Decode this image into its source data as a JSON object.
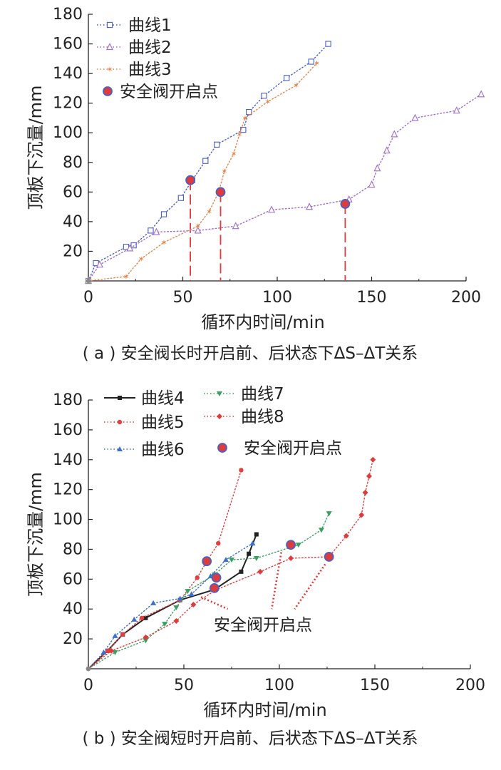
{
  "chart_data": [
    {
      "type": "line",
      "caption": "( a ) 安全阀长时开启前、后状态下ΔS–ΔT关系",
      "xlabel": "循环内时间/min",
      "ylabel": "顶板下沉量/mm",
      "xlim": [
        0,
        200
      ],
      "ylim": [
        0,
        180
      ],
      "xticks": [
        "0",
        "50",
        "100",
        "150",
        "200"
      ],
      "yticks": [
        "20",
        "40",
        "60",
        "80",
        "100",
        "120",
        "140",
        "160",
        "180"
      ],
      "legend_position": "top-left",
      "series": [
        {
          "name": "曲线1",
          "color": "#4a5fc8",
          "marker": "square-open",
          "x": [
            0,
            4,
            20,
            24,
            33,
            40,
            49,
            55,
            62,
            68,
            82,
            85,
            93,
            105,
            118,
            127
          ],
          "y": [
            0,
            12,
            23,
            24,
            34,
            45,
            56,
            68,
            81,
            92,
            102,
            114,
            125,
            137,
            148,
            160
          ]
        },
        {
          "name": "曲线2",
          "color": "#a06bd0",
          "marker": "triangle-open",
          "x": [
            0,
            6,
            22,
            36,
            58,
            78,
            97,
            117,
            138,
            150,
            153,
            158,
            162,
            173,
            195,
            208
          ],
          "y": [
            0,
            11,
            22,
            33,
            34,
            37,
            48,
            50,
            55,
            65,
            76,
            88,
            99,
            110,
            115,
            126
          ]
        },
        {
          "name": "曲线3",
          "color": "#e8844a",
          "marker": "star",
          "x": [
            0,
            20,
            28,
            40,
            58,
            64,
            69,
            72,
            77,
            80,
            83,
            95,
            110,
            121
          ],
          "y": [
            0,
            3,
            15,
            26,
            37,
            47,
            60,
            74,
            86,
            99,
            110,
            121,
            132,
            147
          ]
        },
        {
          "name": "安全阀开启点",
          "color": "#e03a3a",
          "marker": "filled-circle",
          "x": [
            54,
            70,
            136
          ],
          "y": [
            68,
            60,
            52
          ]
        }
      ]
    },
    {
      "type": "line",
      "caption": "( b ) 安全阀短时开启前、后状态下ΔS–ΔT关系",
      "xlabel": "循环内时间/min",
      "ylabel": "顶板下沉量/mm",
      "xlim": [
        0,
        200
      ],
      "ylim": [
        0,
        180
      ],
      "xticks": [
        "0",
        "50",
        "100",
        "150",
        "200"
      ],
      "yticks": [
        "20",
        "40",
        "60",
        "80",
        "100",
        "120",
        "140",
        "160",
        "180"
      ],
      "legend_position": "top-left",
      "annotation": "安全阀开启点",
      "series": [
        {
          "name": "曲线4",
          "color": "#222222",
          "marker": "square",
          "x": [
            0,
            10,
            18,
            30,
            48,
            66,
            80,
            84,
            88
          ],
          "y": [
            0,
            12,
            23,
            34,
            46,
            53,
            65,
            77,
            90
          ]
        },
        {
          "name": "曲线5",
          "color": "#e04040",
          "marker": "circle",
          "x": [
            0,
            10,
            18,
            28,
            48,
            57,
            62,
            68,
            80
          ],
          "y": [
            0,
            12,
            23,
            34,
            46,
            61,
            72,
            84,
            133
          ]
        },
        {
          "name": "曲线6",
          "color": "#3a6fd0",
          "marker": "triangle",
          "x": [
            0,
            8,
            14,
            24,
            34,
            48,
            54,
            64,
            72,
            86
          ],
          "y": [
            0,
            11,
            22,
            33,
            44,
            47,
            50,
            62,
            73,
            84
          ]
        },
        {
          "name": "曲线7",
          "color": "#3aa060",
          "marker": "triangle-down",
          "x": [
            0,
            14,
            30,
            40,
            46,
            52,
            66,
            75,
            88,
            110,
            122,
            126
          ],
          "y": [
            0,
            11,
            19,
            30,
            41,
            52,
            63,
            73,
            74,
            83,
            93,
            104
          ]
        },
        {
          "name": "曲线8",
          "color": "#e03a3a",
          "marker": "diamond",
          "x": [
            0,
            12,
            30,
            46,
            55,
            67,
            90,
            106,
            126,
            135,
            143,
            145,
            147,
            149
          ],
          "y": [
            0,
            12,
            21,
            32,
            43,
            53,
            65,
            74,
            75,
            89,
            103,
            118,
            129,
            140
          ]
        },
        {
          "name": "安全阀开启点",
          "color": "#e03a3a",
          "marker": "filled-circle",
          "x": [
            66,
            62,
            67,
            106,
            126
          ],
          "y": [
            54,
            72,
            61,
            83,
            75
          ]
        }
      ]
    }
  ]
}
